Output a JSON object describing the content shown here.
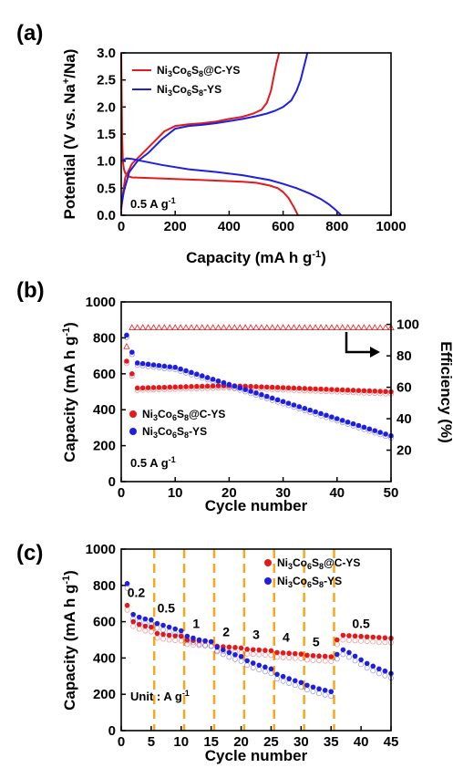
{
  "chart_data": [
    {
      "id": "a",
      "panel_label": "(a)",
      "type": "line",
      "xlabel": "Capacity (mA h g",
      "xlabel_sup": "-1",
      "xlabel_tail": ")",
      "ylabel": "Potential (V vs. Na",
      "ylabel_sup": "+",
      "ylabel_tail": "/Na)",
      "xlim": [
        0,
        1000
      ],
      "ylim": [
        0,
        3.0
      ],
      "xticks": [
        "0",
        "200",
        "400",
        "600",
        "800",
        "1000"
      ],
      "yticks": [
        "0.0",
        "0.5",
        "1.0",
        "1.5",
        "2.0",
        "2.5",
        "3.0"
      ],
      "annotation": {
        "main": "0.5 A g",
        "sup": "-1"
      },
      "legend": [
        {
          "base": "Ni",
          "s1": "3",
          "mid": "Co",
          "s2": "6",
          "tail1": "S",
          "s3": "8",
          "tail2": "@C-YS",
          "color": "#e31a1c"
        },
        {
          "base": "Ni",
          "s1": "3",
          "mid": "Co",
          "s2": "6",
          "tail1": "S",
          "s3": "8",
          "tail2": "-YS",
          "color": "#1f1fe0"
        }
      ],
      "series": [
        {
          "name": "Ni3Co6S8@C-YS discharge",
          "color": "#e31a1c",
          "x": [
            0,
            3,
            6,
            10,
            15,
            25,
            40,
            100,
            200,
            300,
            400,
            450,
            500,
            550,
            580,
            600,
            620,
            640,
            655
          ],
          "y": [
            3.0,
            1.5,
            1.0,
            0.85,
            0.78,
            0.72,
            0.7,
            0.69,
            0.67,
            0.65,
            0.63,
            0.62,
            0.6,
            0.55,
            0.5,
            0.43,
            0.32,
            0.15,
            0.0
          ]
        },
        {
          "name": "Ni3Co6S8@C-YS charge",
          "color": "#e31a1c",
          "x": [
            0,
            5,
            15,
            40,
            80,
            120,
            160,
            200,
            250,
            300,
            350,
            400,
            450,
            490,
            520,
            540,
            555,
            565,
            575,
            585
          ],
          "y": [
            0.1,
            0.35,
            0.7,
            0.95,
            1.15,
            1.35,
            1.55,
            1.65,
            1.68,
            1.7,
            1.73,
            1.78,
            1.82,
            1.88,
            1.95,
            2.08,
            2.3,
            2.55,
            2.8,
            3.0
          ]
        },
        {
          "name": "Ni3Co6S8-YS discharge",
          "color": "#1f1fe0",
          "x": [
            0,
            20,
            40,
            80,
            150,
            250,
            350,
            450,
            550,
            600,
            650,
            700,
            740,
            770,
            790,
            805,
            815
          ],
          "y": [
            1.0,
            1.05,
            1.04,
            1.0,
            0.93,
            0.85,
            0.8,
            0.74,
            0.65,
            0.58,
            0.5,
            0.4,
            0.3,
            0.2,
            0.12,
            0.05,
            0.0
          ]
        },
        {
          "name": "Ni3Co6S8-YS charge",
          "color": "#1f1fe0",
          "x": [
            0,
            10,
            30,
            60,
            100,
            150,
            200,
            250,
            300,
            350,
            400,
            450,
            500,
            540,
            570,
            600,
            630,
            650,
            665,
            675,
            685,
            690
          ],
          "y": [
            0.15,
            0.45,
            0.8,
            1.0,
            1.15,
            1.4,
            1.6,
            1.65,
            1.67,
            1.7,
            1.74,
            1.78,
            1.83,
            1.88,
            1.93,
            2.0,
            2.12,
            2.3,
            2.5,
            2.7,
            2.9,
            3.0
          ]
        }
      ]
    },
    {
      "id": "b",
      "panel_label": "(b)",
      "type": "scatter",
      "xlabel": "Cycle number",
      "ylabel": "Capacity (mA h g",
      "ylabel_sup": "-1",
      "ylabel_tail": ")",
      "y2label": "Efficiency (%)",
      "xlim": [
        0,
        50
      ],
      "ylim": [
        0,
        1000
      ],
      "y2lim": [
        0,
        114.3
      ],
      "xticks": [
        "0",
        "10",
        "20",
        "30",
        "40",
        "50"
      ],
      "yticks": [
        "0",
        "200",
        "400",
        "600",
        "800",
        "1000"
      ],
      "y2ticks": [
        "20",
        "40",
        "60",
        "80",
        "100"
      ],
      "annotation": {
        "main": "0.5 A g",
        "sup": "-1"
      },
      "legend": [
        {
          "base": "Ni",
          "s1": "3",
          "mid": "Co",
          "s2": "6",
          "tail1": "S",
          "s3": "8",
          "tail2": "@C-YS",
          "color": "#e31a1c"
        },
        {
          "base": "Ni",
          "s1": "3",
          "mid": "Co",
          "s2": "6",
          "tail1": "S",
          "s3": "8",
          "tail2": "-YS",
          "color": "#1f1fe0"
        }
      ],
      "series": [
        {
          "name": "Ni3Co6S8@C-YS",
          "color": "#e31a1c",
          "y_start": 670,
          "y_second": 600,
          "y_plateau": 520,
          "y_end": 500
        },
        {
          "name": "Ni3Co6S8-YS",
          "color": "#1f1fe0",
          "y_start": 815,
          "y_second": 720,
          "y_plateau": 660,
          "y_end": 255
        },
        {
          "name": "Efficiency",
          "color": "#e31a1c",
          "efficiency_values": [
            86,
            97,
            98,
            98,
            98,
            98,
            98,
            98,
            98,
            98
          ]
        }
      ]
    },
    {
      "id": "c",
      "panel_label": "(c)",
      "type": "scatter",
      "xlabel": "Cycle number",
      "ylabel": "Capacity (mA h g",
      "ylabel_sup": "-1",
      "ylabel_tail": ")",
      "xlim": [
        0,
        45
      ],
      "ylim": [
        0,
        1000
      ],
      "xticks": [
        "0",
        "5",
        "10",
        "15",
        "20",
        "25",
        "30",
        "35",
        "40",
        "45"
      ],
      "yticks": [
        "0",
        "200",
        "400",
        "600",
        "800",
        "1000"
      ],
      "dividers": [
        5.5,
        10.5,
        15.5,
        20.5,
        25.5,
        30.5,
        35.5
      ],
      "rate_labels": [
        {
          "text": "0.2",
          "x": 2.5,
          "y": 735
        },
        {
          "text": "0.5",
          "x": 7.5,
          "y": 650
        },
        {
          "text": "1",
          "x": 12.5,
          "y": 565
        },
        {
          "text": "2",
          "x": 17.5,
          "y": 520
        },
        {
          "text": "3",
          "x": 22.5,
          "y": 505
        },
        {
          "text": "4",
          "x": 27.5,
          "y": 490
        },
        {
          "text": "5",
          "x": 32.5,
          "y": 465
        },
        {
          "text": "0.5",
          "x": 40.0,
          "y": 565
        }
      ],
      "annotation": {
        "main": "Unit : A g",
        "sup": "-1"
      },
      "legend": [
        {
          "base": "Ni",
          "s1": "3",
          "mid": "Co",
          "s2": "6",
          "tail1": "S",
          "s3": "8",
          "tail2": "@C-YS",
          "color": "#e31a1c"
        },
        {
          "base": "Ni",
          "s1": "3",
          "mid": "Co",
          "s2": "6",
          "tail1": "S",
          "s3": "8",
          "tail2": "-YS",
          "color": "#1f1fe0"
        }
      ],
      "series": [
        {
          "name": "Ni3Co6S8@C-YS",
          "color": "#e31a1c",
          "values": [
            690,
            600,
            585,
            575,
            570,
            535,
            530,
            525,
            522,
            520,
            500,
            497,
            495,
            493,
            490,
            465,
            462,
            460,
            458,
            455,
            448,
            446,
            444,
            442,
            440,
            430,
            428,
            426,
            424,
            422,
            415,
            413,
            411,
            409,
            407,
            500,
            525,
            523,
            521,
            519,
            517,
            515,
            513,
            511,
            509
          ]
        },
        {
          "name": "Ni3Co6S8-YS",
          "color": "#1f1fe0",
          "values": [
            810,
            640,
            625,
            615,
            610,
            590,
            580,
            570,
            560,
            550,
            520,
            510,
            500,
            495,
            490,
            460,
            445,
            430,
            418,
            408,
            385,
            372,
            360,
            350,
            340,
            310,
            298,
            286,
            275,
            265,
            250,
            240,
            230,
            222,
            215,
            420,
            445,
            430,
            410,
            390,
            370,
            355,
            340,
            328,
            315
          ]
        }
      ]
    }
  ]
}
